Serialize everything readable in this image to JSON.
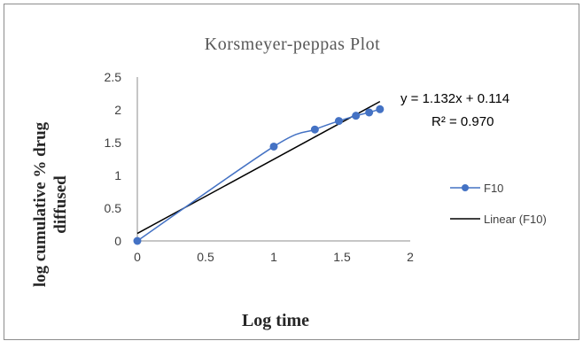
{
  "chart_data": {
    "type": "scatter",
    "title": "Korsmeyer-peppas Plot",
    "xlabel": "Log time",
    "ylabel_lines": [
      "log cumulative % drug",
      "diffused"
    ],
    "xlim": [
      0,
      2
    ],
    "ylim": [
      0,
      2.5
    ],
    "x_ticks": [
      "0",
      "0.5",
      "1",
      "1.5",
      "2"
    ],
    "y_ticks": [
      "0",
      "0.5",
      "1",
      "1.5",
      "2",
      "2.5"
    ],
    "x_tick_values": [
      0,
      0.5,
      1,
      1.5,
      2
    ],
    "y_tick_values": [
      0,
      0.5,
      1,
      1.5,
      2,
      2.5
    ],
    "grid": false,
    "legend_position": "right",
    "series": [
      {
        "name": "F10",
        "color": "#4472c4",
        "marker": "circle",
        "line": "smooth",
        "x": [
          0,
          1.0,
          1.301,
          1.477,
          1.602,
          1.699,
          1.778
        ],
        "y": [
          0,
          1.44,
          1.7,
          1.83,
          1.91,
          1.96,
          2.01
        ]
      }
    ],
    "trendline": {
      "name": "Linear (F10)",
      "color": "#000000",
      "slope": 1.132,
      "intercept": 0.114,
      "x_range": [
        0,
        1.778
      ]
    },
    "annotations": {
      "equation": "y = 1.132x + 0.114",
      "r_squared": "R² = 0.970"
    }
  }
}
